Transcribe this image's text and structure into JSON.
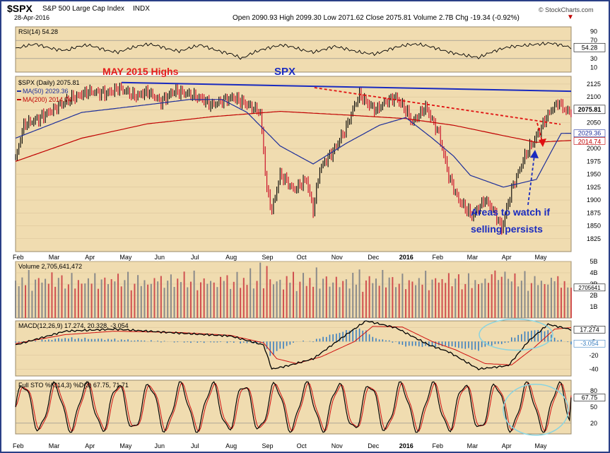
{
  "header": {
    "symbol": "$SPX",
    "name": "S&P 500 Large Cap Index",
    "exchange": "INDX",
    "date": "28-Apr-2016",
    "quote": "Open 2090.93  High 2099.30  Low 2071.62  Close 2075.81  Volume 2.7B  Chg -19.34 (-0.92%)",
    "chg_arrow": "▼",
    "credit": "© StockCharts.com"
  },
  "annotations": {
    "may_highs": "MAY 2015 Highs",
    "spx": "SPX",
    "watch_line1": "Areas to watch if",
    "watch_line2": "selling persists"
  },
  "colors": {
    "panel_bg": "#f0dcb0",
    "price_bar": "#000000",
    "down_bar": "#c8001e",
    "ma50": "#1d2e9a",
    "ma200": "#c00000",
    "trend_blue": "#1a2bbf",
    "trend_red": "#e01010",
    "macd_hist": "#3a7fc0",
    "ellipse": "#8ad4e0"
  },
  "chart_data": [
    {
      "type": "line",
      "panel": "rsi",
      "legend": "RSI(14) 54.28",
      "last": 54.28,
      "ylim": [
        0,
        100
      ],
      "ticks": [
        10,
        30,
        50,
        70,
        90
      ],
      "levels": [
        30,
        70
      ],
      "values": [
        52,
        58,
        62,
        55,
        50,
        48,
        56,
        60,
        54,
        47,
        44,
        52,
        58,
        62,
        57,
        50,
        46,
        54,
        60,
        52,
        45,
        40,
        30,
        42,
        50,
        56,
        60,
        55,
        48,
        44,
        50,
        57,
        52,
        46,
        42,
        40,
        48,
        55,
        60,
        62,
        58,
        52,
        45,
        40,
        36,
        32,
        42,
        50,
        56,
        58,
        60,
        62,
        64,
        60,
        54.28
      ]
    },
    {
      "type": "line",
      "panel": "price",
      "title": "$SPX (Daily) 2075.81",
      "last": 2075.81,
      "ylim": [
        1800,
        2140
      ],
      "ticks": [
        1825,
        1850,
        1875,
        1900,
        1925,
        1950,
        1975,
        2000,
        2025,
        2050,
        2075,
        2100,
        2125
      ],
      "x_ticks": [
        "Feb",
        "Mar",
        "Apr",
        "May",
        "Jun",
        "Jul",
        "Aug",
        "Sep",
        "Oct",
        "Nov",
        "Dec",
        "2016",
        "Feb",
        "Mar",
        "Apr",
        "May"
      ],
      "series": [
        {
          "name": "MA(50) 2029.36",
          "last": 2029.36,
          "anchors": [
            [
              0,
              2020
            ],
            [
              40,
              2070
            ],
            [
              80,
              2085
            ],
            [
              105,
              2095
            ],
            [
              125,
              2095
            ],
            [
              140,
              2070
            ],
            [
              160,
              2005
            ],
            [
              180,
              1970
            ],
            [
              200,
              2010
            ],
            [
              220,
              2045
            ],
            [
              236,
              2060
            ],
            [
              252,
              2020
            ],
            [
              265,
              1985
            ],
            [
              275,
              1948
            ],
            [
              295,
              1925
            ],
            [
              315,
              1940
            ],
            [
              325,
              2000
            ],
            [
              330,
              2029.36
            ]
          ]
        },
        {
          "name": "MA(200) 2014.74",
          "last": 2014.74,
          "anchors": [
            [
              0,
              1975
            ],
            [
              40,
              2020
            ],
            [
              80,
              2048
            ],
            [
              120,
              2062
            ],
            [
              160,
              2072
            ],
            [
              200,
              2065
            ],
            [
              236,
              2058
            ],
            [
              265,
              2045
            ],
            [
              295,
              2025
            ],
            [
              315,
              2012
            ],
            [
              330,
              2014.74
            ]
          ]
        }
      ],
      "price_anchors": [
        [
          0,
          1980
        ],
        [
          5,
          2045
        ],
        [
          15,
          2060
        ],
        [
          25,
          2080
        ],
        [
          35,
          2100
        ],
        [
          45,
          2110
        ],
        [
          55,
          2107
        ],
        [
          62,
          2117
        ],
        [
          72,
          2102
        ],
        [
          80,
          2110
        ],
        [
          88,
          2090
        ],
        [
          96,
          2113
        ],
        [
          104,
          2105
        ],
        [
          112,
          2098
        ],
        [
          118,
          2085
        ],
        [
          124,
          2090
        ],
        [
          132,
          2100
        ],
        [
          140,
          2085
        ],
        [
          148,
          2070
        ],
        [
          152,
          1920
        ],
        [
          155,
          1880
        ],
        [
          160,
          1950
        ],
        [
          168,
          1920
        ],
        [
          176,
          1940
        ],
        [
          180,
          1880
        ],
        [
          184,
          1960
        ],
        [
          192,
          1995
        ],
        [
          200,
          2040
        ],
        [
          204,
          2075
        ],
        [
          208,
          2105
        ],
        [
          212,
          2090
        ],
        [
          218,
          2075
        ],
        [
          224,
          2090
        ],
        [
          230,
          2100
        ],
        [
          236,
          2075
        ],
        [
          240,
          2050
        ],
        [
          248,
          2080
        ],
        [
          252,
          2055
        ],
        [
          256,
          2030
        ],
        [
          262,
          1945
        ],
        [
          268,
          1900
        ],
        [
          276,
          1870
        ],
        [
          284,
          1900
        ],
        [
          290,
          1875
        ],
        [
          294,
          1845
        ],
        [
          300,
          1920
        ],
        [
          308,
          1985
        ],
        [
          316,
          2030
        ],
        [
          322,
          2065
        ],
        [
          328,
          2090
        ],
        [
          334,
          2070
        ],
        [
          336,
          2075.81
        ]
      ],
      "trendlines": [
        {
          "name": "trend_blue",
          "points": [
            [
              0,
              2131
            ],
            [
              336,
              2111
            ]
          ]
        },
        {
          "name": "trend_red",
          "points": [
            [
              200,
              2118
            ],
            [
              336,
              2047
            ]
          ]
        }
      ]
    },
    {
      "type": "bar",
      "panel": "volume",
      "legend": "Volume 2,705,641,472",
      "last": 2705641472,
      "ylim": [
        0,
        5000000000
      ],
      "ticks": [
        "1B",
        "2B",
        "3B",
        "4B",
        "5B"
      ],
      "pattern": [
        3.2,
        2.8,
        3.6,
        3.1,
        4.0,
        2.5,
        3.3,
        3.8,
        2.9,
        3.5,
        3.0,
        4.2,
        2.7,
        3.4,
        3.9,
        2.6,
        3.1,
        3.7,
        2.8,
        3.3
      ],
      "spikes": [
        [
          148,
          4.9
        ],
        [
          152,
          4.6
        ],
        [
          204,
          4.0
        ],
        [
          290,
          4.2
        ],
        [
          296,
          4.1
        ],
        [
          334,
          2.7
        ]
      ]
    },
    {
      "type": "line",
      "panel": "macd",
      "legend": "MACD(12,26,9) 17.274, 20.328, -3.054",
      "last": [
        17.274,
        20.328,
        -3.054
      ],
      "ylim": [
        -50,
        30
      ],
      "ticks": [
        -40,
        -20,
        0,
        20
      ],
      "macd_anchors": [
        [
          0,
          -5
        ],
        [
          30,
          15
        ],
        [
          60,
          18
        ],
        [
          100,
          12
        ],
        [
          130,
          8
        ],
        [
          150,
          -5
        ],
        [
          155,
          -40
        ],
        [
          165,
          -35
        ],
        [
          180,
          -25
        ],
        [
          200,
          10
        ],
        [
          212,
          30
        ],
        [
          230,
          20
        ],
        [
          250,
          -5
        ],
        [
          262,
          -15
        ],
        [
          280,
          -40
        ],
        [
          298,
          -35
        ],
        [
          310,
          0
        ],
        [
          322,
          25
        ],
        [
          336,
          17.274
        ]
      ],
      "signal_anchors": [
        [
          0,
          -3
        ],
        [
          30,
          10
        ],
        [
          60,
          15
        ],
        [
          100,
          13
        ],
        [
          130,
          9
        ],
        [
          150,
          -2
        ],
        [
          158,
          -25
        ],
        [
          170,
          -32
        ],
        [
          185,
          -22
        ],
        [
          205,
          0
        ],
        [
          216,
          22
        ],
        [
          234,
          21
        ],
        [
          252,
          0
        ],
        [
          266,
          -12
        ],
        [
          284,
          -32
        ],
        [
          300,
          -34
        ],
        [
          314,
          -8
        ],
        [
          326,
          18
        ],
        [
          336,
          20.328
        ]
      ]
    },
    {
      "type": "line",
      "panel": "stochastic",
      "legend": "Full STO %K(14,3) %D(3) 67.75, 71.71",
      "last": [
        67.75,
        71.71
      ],
      "ylim": [
        0,
        100
      ],
      "ticks": [
        20,
        50,
        80
      ],
      "levels": [
        20,
        80
      ]
    }
  ]
}
